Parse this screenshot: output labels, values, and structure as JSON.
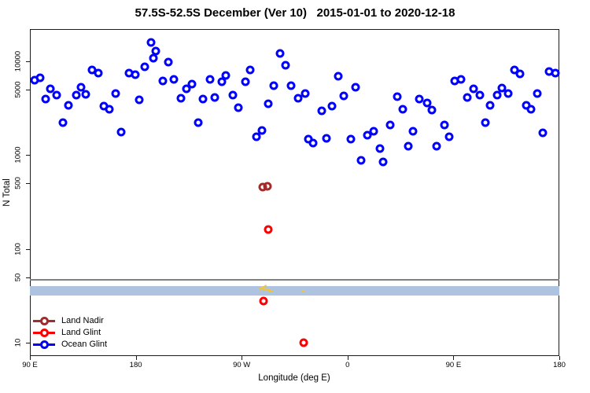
{
  "chart_data": {
    "type": "scatter",
    "title": "57.5S-52.5S December (Ver 10)   2015-01-01 to 2020-12-18",
    "xlabel": "Longitude (deg E)",
    "ylabel": "N Total",
    "y_scale": "log",
    "xlim": [
      90,
      540
    ],
    "ylim": [
      7.5,
      23000
    ],
    "grid": false,
    "x_ticks": [
      {
        "value": 90,
        "label": "90 E"
      },
      {
        "value": 180,
        "label": "180"
      },
      {
        "value": 270,
        "label": "90 W"
      },
      {
        "value": 360,
        "label": "0"
      },
      {
        "value": 450,
        "label": "90 E"
      },
      {
        "value": 540,
        "label": "180"
      }
    ],
    "y_ticks": [
      {
        "value": 10,
        "label": "10"
      },
      {
        "value": 50,
        "label": "50"
      },
      {
        "value": 100,
        "label": "100"
      },
      {
        "value": 500,
        "label": "500"
      },
      {
        "value": 1000,
        "label": "1000"
      },
      {
        "value": 5000,
        "label": "5000"
      },
      {
        "value": 10000,
        "label": "10000"
      }
    ],
    "legend": {
      "position": "bottom-left",
      "items": [
        {
          "label": "Land Nadir",
          "color": "#A52A2A"
        },
        {
          "label": "Land Glint",
          "color": "#FF0000"
        },
        {
          "label": "Ocean Glint",
          "color": "#0000FF"
        }
      ]
    },
    "reference_line": {
      "n": 47,
      "color": "#808080"
    },
    "band": {
      "n_min": 32,
      "n_max": 40,
      "color": "#AEC3DF"
    },
    "series": [
      {
        "name": "Ocean Glint",
        "color": "#0000FF",
        "marker": "open-circle",
        "points": [
          [
            192.8,
            15900
          ],
          [
            196.8,
            12900
          ],
          [
            194.8,
            10800
          ],
          [
            207.5,
            9900
          ],
          [
            187.5,
            8750
          ],
          [
            142.7,
            8100
          ],
          [
            148.1,
            7500
          ],
          [
            174.1,
            7500
          ],
          [
            179.5,
            7200
          ],
          [
            98.7,
            6680
          ],
          [
            94.0,
            6300
          ],
          [
            202.8,
            6180
          ],
          [
            107.4,
            5100
          ],
          [
            133.4,
            5300
          ],
          [
            137.4,
            4450
          ],
          [
            129.4,
            4370
          ],
          [
            112.7,
            4370
          ],
          [
            103.4,
            3970
          ],
          [
            162.8,
            4540
          ],
          [
            182.8,
            3890
          ],
          [
            122.7,
            3400
          ],
          [
            152.8,
            3330
          ],
          [
            157.4,
            3080
          ],
          [
            118.0,
            2220
          ],
          [
            167.4,
            1760
          ],
          [
            302.3,
            12200
          ],
          [
            307.0,
            9100
          ],
          [
            276.9,
            8100
          ],
          [
            212.2,
            6420
          ],
          [
            256.3,
            7100
          ],
          [
            242.9,
            6420
          ],
          [
            252.9,
            6070
          ],
          [
            272.9,
            6070
          ],
          [
            227.5,
            5720
          ],
          [
            222.9,
            5100
          ],
          [
            297.6,
            5510
          ],
          [
            312.3,
            5510
          ],
          [
            218.2,
            4040
          ],
          [
            236.9,
            3970
          ],
          [
            246.9,
            4120
          ],
          [
            262.3,
            4370
          ],
          [
            318.3,
            4040
          ],
          [
            266.9,
            3210
          ],
          [
            292.3,
            3530
          ],
          [
            232.9,
            2220
          ],
          [
            287.0,
            1830
          ],
          [
            282.3,
            1570
          ],
          [
            323.7,
            4540
          ],
          [
            352.4,
            6950
          ],
          [
            367.0,
            5300
          ],
          [
            357.0,
            4290
          ],
          [
            347.0,
            3330
          ],
          [
            338.3,
            2970
          ],
          [
            402.4,
            4200
          ],
          [
            421.1,
            3970
          ],
          [
            427.8,
            3600
          ],
          [
            431.8,
            3030
          ],
          [
            407.1,
            3080
          ],
          [
            396.4,
            2100
          ],
          [
            382.4,
            1800
          ],
          [
            377.0,
            1630
          ],
          [
            342.4,
            1510
          ],
          [
            327.0,
            1480
          ],
          [
            331.0,
            1350
          ],
          [
            363.0,
            1480
          ],
          [
            415.8,
            1800
          ],
          [
            387.7,
            1175
          ],
          [
            411.8,
            1250
          ],
          [
            435.8,
            1250
          ],
          [
            371.7,
            880
          ],
          [
            390.4,
            846
          ],
          [
            501.9,
            8100
          ],
          [
            506.5,
            7360
          ],
          [
            531.2,
            7800
          ],
          [
            536.6,
            7500
          ],
          [
            451.1,
            6180
          ],
          [
            456.5,
            6420
          ],
          [
            467.2,
            5100
          ],
          [
            461.8,
            4120
          ],
          [
            472.5,
            4370
          ],
          [
            491.2,
            5200
          ],
          [
            487.2,
            4370
          ],
          [
            496.5,
            4540
          ],
          [
            521.2,
            4540
          ],
          [
            481.2,
            3400
          ],
          [
            511.9,
            3400
          ],
          [
            515.9,
            3080
          ],
          [
            442.5,
            2100
          ],
          [
            446.5,
            1570
          ],
          [
            477.2,
            2220
          ],
          [
            525.9,
            1730
          ]
        ]
      },
      {
        "name": "Land Nadir",
        "color": "#A52A2A",
        "marker": "open-circle",
        "points": [
          [
            287.9,
            455
          ],
          [
            291.9,
            465
          ]
        ]
      },
      {
        "name": "Land Glint",
        "color": "#FF0000",
        "marker": "open-circle",
        "points": [
          [
            292.3,
            160
          ],
          [
            288.3,
            28
          ],
          [
            322.9,
            10
          ]
        ]
      },
      {
        "name": "unlabeled gold marks",
        "color": "#EDC53F",
        "marker": "small-dash",
        "points": [
          {
            "lon": 287.0,
            "n": 38.6,
            "w": 7,
            "h": 3,
            "rot": -20
          },
          {
            "lon": 289.6,
            "n": 40.2,
            "w": 4,
            "h": 2,
            "rot": -30
          },
          {
            "lon": 291.0,
            "n": 36.5,
            "w": 9,
            "h": 3,
            "rot": 8
          },
          {
            "lon": 295.0,
            "n": 35.1,
            "w": 5,
            "h": 2,
            "rot": 0
          },
          {
            "lon": 322.9,
            "n": 35.8,
            "w": 4,
            "h": 2,
            "rot": 0
          }
        ]
      }
    ]
  }
}
